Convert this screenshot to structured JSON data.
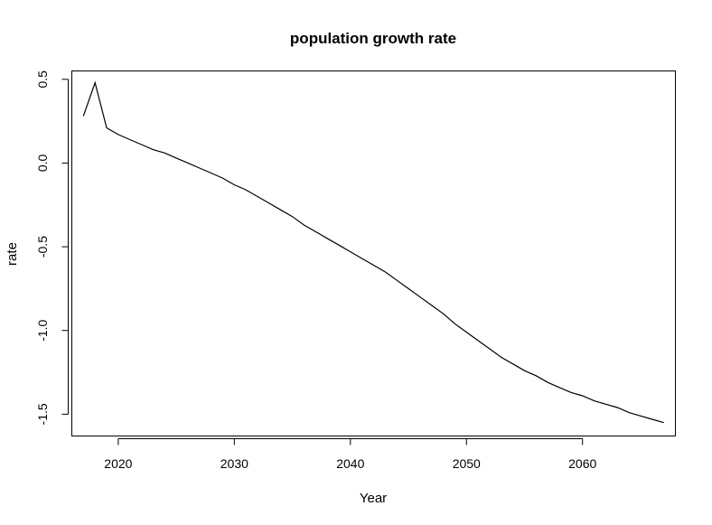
{
  "chart_data": {
    "type": "line",
    "title": "population growth rate",
    "xlabel": "Year",
    "ylabel": "rate",
    "xlim": [
      2016,
      2068
    ],
    "ylim": [
      -1.63,
      0.55
    ],
    "x_ticks": [
      2020,
      2030,
      2040,
      2050,
      2060
    ],
    "y_ticks": [
      0.5,
      0.0,
      -0.5,
      -1.0,
      -1.5
    ],
    "x_tick_labels": [
      "2020",
      "2030",
      "2040",
      "2050",
      "2060"
    ],
    "y_tick_labels": [
      "0.5",
      "0.0",
      "-0.5",
      "-1.0",
      "-1.5"
    ],
    "grid": false,
    "legend": "none",
    "series": [
      {
        "color": "#000000",
        "x": [
          2017,
          2018,
          2019,
          2020,
          2021,
          2022,
          2023,
          2024,
          2025,
          2026,
          2027,
          2028,
          2029,
          2030,
          2031,
          2032,
          2033,
          2034,
          2035,
          2036,
          2037,
          2038,
          2039,
          2040,
          2041,
          2042,
          2043,
          2044,
          2045,
          2046,
          2047,
          2048,
          2049,
          2050,
          2051,
          2052,
          2053,
          2054,
          2055,
          2056,
          2057,
          2058,
          2059,
          2060,
          2061,
          2062,
          2063,
          2064,
          2065,
          2066,
          2067
        ],
        "y": [
          0.28,
          0.48,
          0.21,
          0.17,
          0.14,
          0.11,
          0.08,
          0.06,
          0.03,
          0.0,
          -0.03,
          -0.06,
          -0.09,
          -0.13,
          -0.16,
          -0.2,
          -0.24,
          -0.28,
          -0.32,
          -0.37,
          -0.41,
          -0.45,
          -0.49,
          -0.53,
          -0.57,
          -0.61,
          -0.65,
          -0.7,
          -0.75,
          -0.8,
          -0.85,
          -0.9,
          -0.96,
          -1.01,
          -1.06,
          -1.11,
          -1.16,
          -1.2,
          -1.24,
          -1.27,
          -1.31,
          -1.34,
          -1.37,
          -1.39,
          -1.42,
          -1.44,
          -1.46,
          -1.49,
          -1.51,
          -1.53,
          -1.55
        ]
      }
    ]
  }
}
